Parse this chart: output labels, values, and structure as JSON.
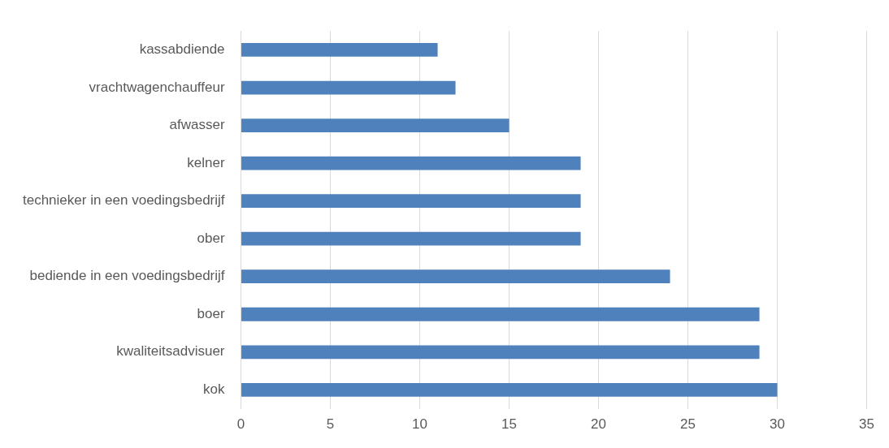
{
  "chart_data": {
    "type": "bar",
    "orientation": "horizontal",
    "categories": [
      "kassabdiende",
      "vrachtwagenchauffeur",
      "afwasser",
      "kelner",
      "technieker in een voedingsbedrijf",
      "ober",
      "bediende in een voedingsbedrijf",
      "boer",
      "kwaliteitsadvisuer",
      "kok"
    ],
    "values": [
      11,
      12,
      15,
      19,
      19,
      19,
      24,
      29,
      29,
      30
    ],
    "color": "#4f81bd",
    "xlim": [
      0,
      35
    ],
    "xticks": [
      0,
      5,
      10,
      15,
      20,
      25,
      30,
      35
    ],
    "grid": "x",
    "legend": false
  }
}
